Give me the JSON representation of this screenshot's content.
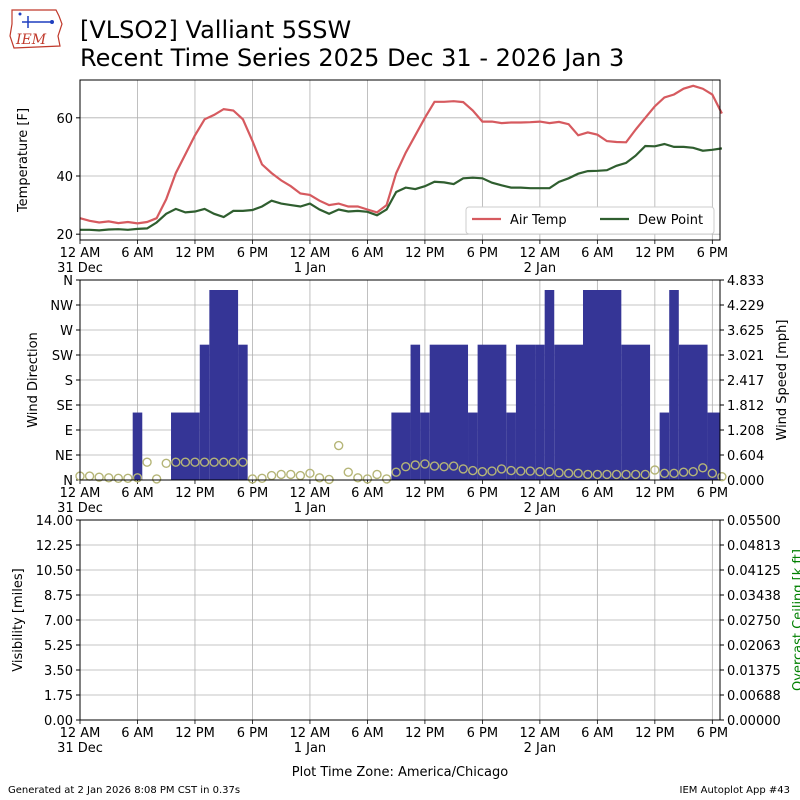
{
  "header": {
    "title_line1": "[VLSO2] Valliant 5SSW",
    "title_line2": "Recent Time Series 2025 Dec 31 - 2026 Jan 3",
    "logo_text": "IEM"
  },
  "footer": {
    "left": "Generated at 2 Jan 2026 8:08 PM CST in 0.37s",
    "right": "IEM Autoplot App #43"
  },
  "x_axis": {
    "time_zone_label": "Plot Time Zone: America/Chicago",
    "range_hours": [
      0,
      66.8
    ],
    "ticks": [
      {
        "h": 0,
        "label": "12 AM",
        "sub": "31 Dec"
      },
      {
        "h": 6,
        "label": "6 AM",
        "sub": ""
      },
      {
        "h": 12,
        "label": "12 PM",
        "sub": ""
      },
      {
        "h": 18,
        "label": "6 PM",
        "sub": ""
      },
      {
        "h": 24,
        "label": "12 AM",
        "sub": "1 Jan"
      },
      {
        "h": 30,
        "label": "6 AM",
        "sub": ""
      },
      {
        "h": 36,
        "label": "12 PM",
        "sub": ""
      },
      {
        "h": 42,
        "label": "6 PM",
        "sub": ""
      },
      {
        "h": 48,
        "label": "12 AM",
        "sub": "2 Jan"
      },
      {
        "h": 54,
        "label": "6 AM",
        "sub": ""
      },
      {
        "h": 60,
        "label": "12 PM",
        "sub": ""
      },
      {
        "h": 66,
        "label": "6 PM",
        "sub": ""
      }
    ]
  },
  "colors": {
    "air_temp": "#d65a5f",
    "dew_point": "#2f5e2f",
    "wind_gust_bar": "#353596",
    "wind_dir_marker": "#b5b577",
    "ceiling_axis": "#008000",
    "grid": "#b0b0b0"
  },
  "chart_data": [
    {
      "type": "line",
      "panel": "temperature",
      "ylabel": "Temperature [F]",
      "ylim": [
        18,
        73
      ],
      "yticks": [
        20,
        40,
        60
      ],
      "grid": true,
      "legend_placement": "lower-right",
      "series": [
        {
          "name": "Air Temp",
          "color": "#d65a5f",
          "x": [
            0,
            1,
            2,
            3,
            4,
            5,
            6,
            7,
            8,
            9,
            10,
            11,
            12,
            13,
            14,
            15,
            16,
            17,
            18,
            19,
            20,
            21,
            22,
            23,
            24,
            25,
            26,
            27,
            28,
            29,
            30,
            31,
            32,
            33,
            34,
            35,
            36,
            37,
            38,
            39,
            40,
            41,
            42,
            43,
            44,
            45,
            46,
            47,
            48,
            49,
            50,
            51,
            52,
            53,
            54,
            55,
            56,
            57,
            58,
            59,
            60,
            61,
            62,
            63,
            64,
            65,
            66,
            67
          ],
          "y": [
            25.5,
            24.6,
            24,
            24.4,
            23.8,
            24.2,
            23.7,
            24.2,
            25.5,
            32,
            41,
            47.5,
            54,
            59.5,
            61,
            63,
            62.5,
            59.5,
            52,
            44,
            41,
            38.5,
            36.5,
            34,
            33.5,
            31.5,
            30,
            30.5,
            29.5,
            29.5,
            28.5,
            27.5,
            30,
            41,
            48,
            54,
            60,
            65.5,
            65.5,
            65.7,
            65.4,
            62.5,
            58.7,
            58.7,
            58.2,
            58.4,
            58.4,
            58.5,
            58.7,
            58.2,
            58.6,
            57.8,
            54,
            55,
            54.2,
            52,
            51.7,
            51.6,
            56,
            60,
            64,
            67,
            68,
            70,
            71,
            70,
            68,
            61.5
          ]
        },
        {
          "name": "Dew Point",
          "color": "#2f5e2f",
          "x": [
            0,
            1,
            2,
            3,
            4,
            5,
            6,
            7,
            8,
            9,
            10,
            11,
            12,
            13,
            14,
            15,
            16,
            17,
            18,
            19,
            20,
            21,
            22,
            23,
            24,
            25,
            26,
            27,
            28,
            29,
            30,
            31,
            32,
            33,
            34,
            35,
            36,
            37,
            38,
            39,
            40,
            41,
            42,
            43,
            44,
            45,
            46,
            47,
            48,
            49,
            50,
            51,
            52,
            53,
            54,
            55,
            56,
            57,
            58,
            59,
            60,
            61,
            62,
            63,
            64,
            65,
            66,
            67
          ],
          "y": [
            21.5,
            21.5,
            21.3,
            21.6,
            21.7,
            21.5,
            21.8,
            22,
            24,
            27,
            28.7,
            27.5,
            27.8,
            28.7,
            27,
            25.9,
            28,
            28,
            28.3,
            29.5,
            31.5,
            30.5,
            30,
            29.5,
            30.5,
            28.5,
            27,
            28.5,
            27.8,
            28,
            27.7,
            26.5,
            28.5,
            34.5,
            36,
            35.5,
            36.5,
            38,
            37.8,
            37.2,
            39.2,
            39.4,
            39.2,
            37.7,
            36.8,
            36,
            36,
            35.8,
            35.8,
            35.8,
            38,
            39.2,
            40.8,
            41.7,
            41.8,
            42,
            43.5,
            44.5,
            47,
            50.3,
            50.2,
            51,
            50,
            50,
            49.7,
            48.7,
            49,
            49.5
          ]
        }
      ]
    },
    {
      "type": "bar",
      "panel": "wind",
      "ylabel_left": "Wind Direction",
      "ylabel_right": "Wind Speed [mph]",
      "left_categories": [
        "N",
        "NE",
        "E",
        "SE",
        "S",
        "SW",
        "W",
        "NW",
        "N"
      ],
      "right_ticks": [
        "0.000",
        "0.604",
        "1.208",
        "1.812",
        "2.417",
        "3.021",
        "3.625",
        "4.229",
        "4.833"
      ],
      "ylim_right": [
        0,
        4.833
      ],
      "grid": true,
      "series": [
        {
          "name": "Wind Speed",
          "color": "#353596",
          "values_mph": [
            {
              "start": 5.5,
              "end": 6.5,
              "v": 1.63
            },
            {
              "start": 9.5,
              "end": 12.5,
              "v": 1.63
            },
            {
              "start": 12.5,
              "end": 13.5,
              "v": 3.27
            },
            {
              "start": 13.5,
              "end": 16.5,
              "v": 4.83
            },
            {
              "start": 16.5,
              "end": 17.5,
              "v": 3.27
            },
            {
              "start": 32.5,
              "end": 34.5,
              "v": 1.63
            },
            {
              "start": 34.5,
              "end": 35.5,
              "v": 3.27
            },
            {
              "start": 35.5,
              "end": 36.5,
              "v": 1.63
            },
            {
              "start": 36.5,
              "end": 40.5,
              "v": 3.27
            },
            {
              "start": 40.5,
              "end": 41.5,
              "v": 1.63
            },
            {
              "start": 41.5,
              "end": 44.5,
              "v": 3.27
            },
            {
              "start": 44.5,
              "end": 45.5,
              "v": 1.63
            },
            {
              "start": 45.5,
              "end": 47.5,
              "v": 3.27
            },
            {
              "start": 47.5,
              "end": 48.5,
              "v": 3.27
            },
            {
              "start": 48.5,
              "end": 49.5,
              "v": 4.83
            },
            {
              "start": 49.5,
              "end": 52.5,
              "v": 3.27
            },
            {
              "start": 52.5,
              "end": 56.5,
              "v": 4.83
            },
            {
              "start": 56.5,
              "end": 59.5,
              "v": 3.27
            },
            {
              "start": 59.5,
              "end": 60.5,
              "v": 0
            },
            {
              "start": 60.5,
              "end": 61.5,
              "v": 1.63
            },
            {
              "start": 61.5,
              "end": 62.5,
              "v": 6.53
            },
            {
              "start": 62.5,
              "end": 65.5,
              "v": 3.27
            },
            {
              "start": 65.5,
              "end": 67.5,
              "v": 1.63
            }
          ]
        },
        {
          "name": "Wind Direction",
          "color": "#b5b577",
          "points_deg": [
            [
              0,
              7
            ],
            [
              1,
              7
            ],
            [
              2,
              5
            ],
            [
              3,
              4
            ],
            [
              4,
              3
            ],
            [
              5,
              3
            ],
            [
              6,
              4
            ],
            [
              7,
              32
            ],
            [
              8,
              2
            ],
            [
              9,
              30
            ],
            [
              10,
              32
            ],
            [
              11,
              32
            ],
            [
              12,
              32
            ],
            [
              13,
              32
            ],
            [
              14,
              32
            ],
            [
              15,
              32
            ],
            [
              16,
              32
            ],
            [
              17,
              32
            ],
            [
              18,
              2
            ],
            [
              19,
              3
            ],
            [
              20,
              8
            ],
            [
              21,
              10
            ],
            [
              22,
              10
            ],
            [
              23,
              8
            ],
            [
              24,
              12
            ],
            [
              25,
              4
            ],
            [
              26,
              1
            ],
            [
              27,
              62
            ],
            [
              28,
              14
            ],
            [
              29,
              4
            ],
            [
              30,
              2
            ],
            [
              31,
              10
            ],
            [
              32,
              2
            ],
            [
              33,
              14
            ],
            [
              34,
              24
            ],
            [
              35,
              27
            ],
            [
              36,
              29
            ],
            [
              37,
              25
            ],
            [
              38,
              24
            ],
            [
              39,
              25
            ],
            [
              40,
              20
            ],
            [
              41,
              17
            ],
            [
              42,
              15
            ],
            [
              43,
              16
            ],
            [
              44,
              20
            ],
            [
              45,
              17
            ],
            [
              46,
              16
            ],
            [
              47,
              16
            ],
            [
              48,
              15
            ],
            [
              49,
              15
            ],
            [
              50,
              13
            ],
            [
              51,
              12
            ],
            [
              52,
              12
            ],
            [
              53,
              10
            ],
            [
              54,
              10
            ],
            [
              55,
              10
            ],
            [
              56,
              10
            ],
            [
              57,
              10
            ],
            [
              58,
              10
            ],
            [
              59,
              10
            ],
            [
              60,
              18
            ],
            [
              61,
              12
            ],
            [
              62,
              12
            ],
            [
              63,
              14
            ],
            [
              64,
              15
            ],
            [
              65,
              22
            ],
            [
              66,
              12
            ],
            [
              67,
              6
            ]
          ]
        }
      ]
    },
    {
      "type": "line",
      "panel": "visibility",
      "ylabel_left": "Visibility [miles]",
      "ylabel_right": "Overcast Ceiling [k ft]",
      "left_ticks": [
        "0.00",
        "1.75",
        "3.50",
        "5.25",
        "7.00",
        "8.75",
        "10.50",
        "12.25",
        "14.00"
      ],
      "right_ticks": [
        "0.00000",
        "0.00688",
        "0.01375",
        "0.02063",
        "0.02750",
        "0.03438",
        "0.04125",
        "0.04813",
        "0.05500"
      ],
      "ylim_left": [
        0,
        14
      ],
      "ylim_right": [
        0,
        0.055
      ],
      "grid": true,
      "series": []
    }
  ]
}
